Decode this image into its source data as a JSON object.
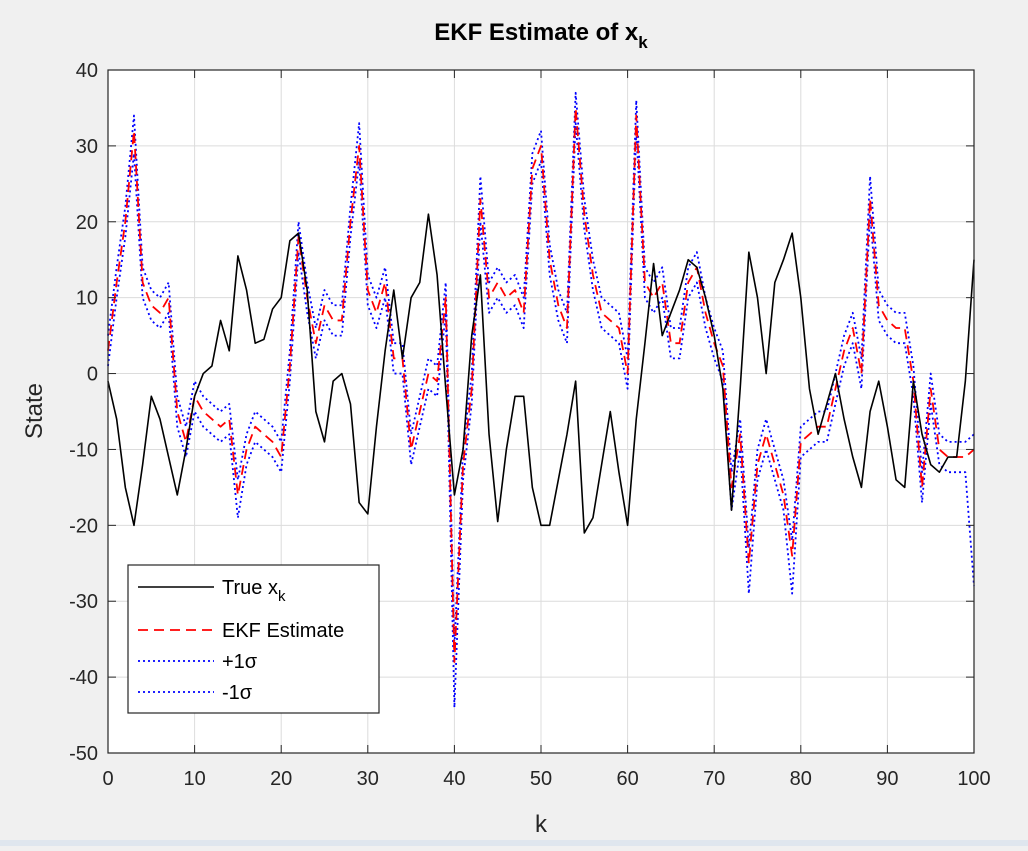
{
  "chart_data": {
    "type": "line",
    "title": "EKF Estimate of x",
    "title_subscript": "k",
    "xlabel": "k",
    "ylabel": "State",
    "xlim": [
      0,
      100
    ],
    "ylim": [
      -50,
      40
    ],
    "xticks": [
      "0",
      "10",
      "20",
      "30",
      "40",
      "50",
      "60",
      "70",
      "80",
      "90",
      "100"
    ],
    "yticks": [
      "40",
      "30",
      "20",
      "10",
      "0",
      "-10",
      "-20",
      "-30",
      "-40",
      "-50"
    ],
    "grid": true,
    "legend_position": "bottom-left",
    "x": [
      0,
      1,
      2,
      3,
      4,
      5,
      6,
      7,
      8,
      9,
      10,
      11,
      12,
      13,
      14,
      15,
      16,
      17,
      18,
      19,
      20,
      21,
      22,
      23,
      24,
      25,
      26,
      27,
      28,
      29,
      30,
      31,
      32,
      33,
      34,
      35,
      36,
      37,
      38,
      39,
      40,
      41,
      42,
      43,
      44,
      45,
      46,
      47,
      48,
      49,
      50,
      51,
      52,
      53,
      54,
      55,
      56,
      57,
      58,
      59,
      60,
      61,
      62,
      63,
      64,
      65,
      66,
      67,
      68,
      69,
      70,
      71,
      72,
      73,
      74,
      75,
      76,
      77,
      78,
      79,
      80,
      81,
      82,
      83,
      84,
      85,
      86,
      87,
      88,
      89,
      90,
      91,
      92,
      93,
      94,
      95,
      96,
      97,
      98,
      99,
      100
    ],
    "series": [
      {
        "name": "True x",
        "name_subscript": "k",
        "color": "#000000",
        "style": "solid",
        "values": [
          -1,
          -6,
          -15,
          -20,
          -12,
          -3,
          -6,
          -11,
          -16,
          -10,
          -3,
          0,
          1,
          7,
          3,
          15.5,
          11,
          4,
          4.5,
          8.5,
          10,
          17.5,
          18.5,
          11,
          -5,
          -9,
          -1,
          0,
          -4,
          -17,
          -18.5,
          -7,
          3,
          11,
          2,
          10,
          12,
          21,
          13,
          -2,
          -16,
          -10,
          5,
          13,
          -8,
          -19.5,
          -10,
          -3,
          -3,
          -15,
          -20,
          -20,
          -14,
          -8,
          -1,
          -21,
          -19,
          -12,
          -5,
          -13,
          -20,
          -6,
          4,
          14.5,
          5,
          8,
          11,
          15,
          14,
          10,
          5,
          -2,
          -18,
          -2,
          16,
          10,
          0,
          12,
          15,
          18.5,
          10,
          -2,
          -8,
          -4,
          0,
          -6,
          -11,
          -15,
          -5,
          -1,
          -7,
          -14,
          -15,
          -1,
          -8,
          -12,
          -13,
          -11,
          -11,
          -1,
          15
        ]
      },
      {
        "name": "EKF Estimate",
        "color": "#ff0000",
        "style": "dashed",
        "values": [
          3,
          12,
          20,
          32,
          12,
          9,
          8,
          10,
          -5,
          -9,
          -3,
          -5,
          -6,
          -7,
          -6,
          -16,
          -10,
          -7,
          -8,
          -9,
          -11,
          1,
          18,
          10,
          4,
          9,
          7,
          7,
          20,
          30,
          11,
          8,
          12,
          2,
          2,
          -10,
          -5,
          0,
          -1,
          10,
          -38,
          -12,
          -2,
          23,
          10,
          12,
          10,
          11,
          8,
          27,
          30,
          15,
          9,
          6,
          35,
          21,
          13,
          8,
          7,
          6,
          0,
          34,
          12,
          10,
          12,
          4,
          4,
          12,
          14,
          8,
          4,
          1,
          -15,
          -8,
          -25,
          -12,
          -8,
          -12,
          -16,
          -24,
          -9,
          -8,
          -7,
          -7,
          -2,
          3,
          6,
          0,
          23,
          9,
          7,
          6,
          6,
          -1,
          -15,
          -2,
          -10,
          -11,
          -11,
          -11,
          -10
        ]
      },
      {
        "name": "+1σ",
        "color": "#0000ff",
        "style": "dotted",
        "values": [
          5,
          14,
          22,
          34,
          14,
          11,
          10,
          12,
          -3,
          -7,
          -1,
          -3,
          -4,
          -5,
          -4,
          -14,
          -8,
          -5,
          -6,
          -7,
          -9,
          3,
          20,
          12,
          6,
          11,
          9,
          9,
          22,
          33,
          13,
          10,
          14,
          4,
          4,
          -8,
          -3,
          2,
          1,
          12,
          -36,
          -10,
          0,
          26,
          12,
          14,
          12,
          13,
          10,
          29,
          32,
          17,
          11,
          8,
          37,
          23,
          15,
          10,
          9,
          8,
          2,
          36,
          14,
          12,
          14,
          6,
          6,
          14,
          16,
          10,
          6,
          3,
          -13,
          -6,
          -23,
          -10,
          -6,
          -10,
          -14,
          -22,
          -7,
          -6,
          -5,
          -5,
          0,
          5,
          8,
          2,
          26,
          11,
          9,
          8,
          8,
          1,
          -13,
          0,
          -8,
          -9,
          -9,
          -9,
          -8
        ]
      },
      {
        "name": "-1σ",
        "color": "#0000ff",
        "style": "dotted",
        "values": [
          1,
          10,
          18,
          29,
          10,
          7,
          6,
          8,
          -7,
          -11,
          -5,
          -7,
          -8,
          -9,
          -8,
          -19,
          -12,
          -9,
          -10,
          -11,
          -13,
          -1,
          16,
          8,
          2,
          7,
          5,
          5,
          18,
          28,
          9,
          6,
          10,
          0,
          0,
          -12,
          -7,
          -2,
          -3,
          8,
          -44,
          -14,
          -4,
          20,
          8,
          10,
          8,
          9,
          6,
          25,
          28,
          13,
          7,
          4,
          33,
          19,
          11,
          6,
          5,
          4,
          -2,
          32,
          10,
          8,
          10,
          2,
          2,
          10,
          12,
          6,
          2,
          -1,
          -18,
          -10,
          -29,
          -14,
          -10,
          -14,
          -18,
          -29,
          -11,
          -10,
          -9,
          -9,
          -4,
          1,
          4,
          -2,
          21,
          7,
          5,
          4,
          4,
          -3,
          -17,
          -4,
          -12,
          -13,
          -13,
          -13,
          -28
        ]
      }
    ]
  },
  "legend": {
    "items": [
      {
        "label": "True x",
        "subscript": "k"
      },
      {
        "label": "EKF Estimate",
        "subscript": ""
      },
      {
        "label": "+1σ",
        "subscript": ""
      },
      {
        "label": "-1σ",
        "subscript": ""
      }
    ]
  }
}
